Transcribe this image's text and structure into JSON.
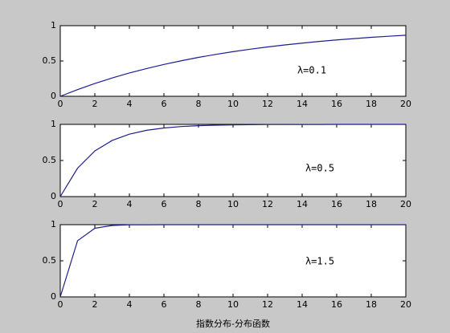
{
  "chart_data": [
    {
      "type": "line",
      "annotation": "λ=0.1",
      "x": [
        0,
        1,
        2,
        3,
        4,
        5,
        6,
        7,
        8,
        9,
        10,
        11,
        12,
        13,
        14,
        15,
        16,
        17,
        18,
        19,
        20
      ],
      "series": [
        {
          "color": "#1f1f8c",
          "values": [
            0,
            0.095,
            0.181,
            0.259,
            0.33,
            0.393,
            0.451,
            0.503,
            0.551,
            0.593,
            0.632,
            0.667,
            0.699,
            0.727,
            0.753,
            0.777,
            0.798,
            0.817,
            0.835,
            0.85,
            0.865
          ]
        }
      ],
      "xlim": [
        0,
        20
      ],
      "xticks": [
        0,
        2,
        4,
        6,
        8,
        10,
        12,
        14,
        16,
        18,
        20
      ],
      "ylim": [
        0,
        1
      ],
      "yticks": [
        0,
        0.5,
        1
      ]
    },
    {
      "type": "line",
      "annotation": "λ=0.5",
      "x": [
        0,
        1,
        2,
        3,
        4,
        5,
        6,
        7,
        8,
        9,
        10,
        11,
        12,
        13,
        14,
        15,
        16,
        17,
        18,
        19,
        20
      ],
      "series": [
        {
          "color": "#1f1f8c",
          "values": [
            0,
            0.393,
            0.632,
            0.777,
            0.865,
            0.918,
            0.95,
            0.97,
            0.982,
            0.989,
            0.993,
            0.996,
            0.998,
            0.998,
            0.999,
            0.999,
            1,
            1,
            1,
            1,
            1
          ]
        }
      ],
      "xlim": [
        0,
        20
      ],
      "xticks": [
        0,
        2,
        4,
        6,
        8,
        10,
        12,
        14,
        16,
        18,
        20
      ],
      "ylim": [
        0,
        1
      ],
      "yticks": [
        0,
        0.5,
        1
      ]
    },
    {
      "type": "line",
      "annotation": "λ=1.5",
      "xlabel": "指数分布-分布函数",
      "x": [
        0,
        1,
        2,
        3,
        4,
        5,
        6,
        7,
        8,
        9,
        10,
        11,
        12,
        13,
        14,
        15,
        16,
        17,
        18,
        19,
        20
      ],
      "series": [
        {
          "color": "#1f1f8c",
          "values": [
            0,
            0.777,
            0.95,
            0.989,
            0.998,
            0.999,
            1,
            1,
            1,
            1,
            1,
            1,
            1,
            1,
            1,
            1,
            1,
            1,
            1,
            1,
            1
          ]
        }
      ],
      "xlim": [
        0,
        20
      ],
      "xticks": [
        0,
        2,
        4,
        6,
        8,
        10,
        12,
        14,
        16,
        18,
        20
      ],
      "ylim": [
        0,
        1
      ],
      "yticks": [
        0,
        0.5,
        1
      ]
    }
  ]
}
